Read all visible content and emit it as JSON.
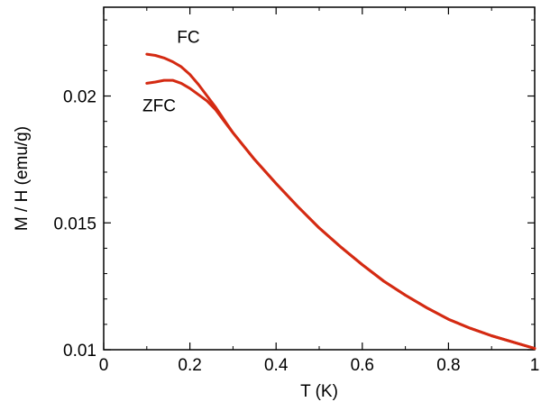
{
  "chart_data": {
    "type": "line",
    "title": "",
    "xlabel": "T (K)",
    "ylabel": "M / H (emu/g)",
    "xlim": [
      0,
      1
    ],
    "ylim": [
      0.01,
      0.0235
    ],
    "x_ticks": [
      0,
      0.2,
      0.4,
      0.6,
      0.8,
      1
    ],
    "x_tick_labels": [
      "0",
      "0.2",
      "0.4",
      "0.6",
      "0.8",
      "1"
    ],
    "y_ticks": [
      0.01,
      0.015,
      0.02
    ],
    "y_tick_labels": [
      "0.01",
      "0.015",
      "0.02"
    ],
    "grid": false,
    "legend": "none",
    "line_color": "#d42a12",
    "annotations": [
      {
        "text": "FC",
        "x": 0.17,
        "y": 0.0221
      },
      {
        "text": "ZFC",
        "x": 0.09,
        "y": 0.0194
      }
    ],
    "series": [
      {
        "name": "FC",
        "x": [
          0.1,
          0.12,
          0.14,
          0.16,
          0.18,
          0.2,
          0.22,
          0.24,
          0.26,
          0.28,
          0.3,
          0.35,
          0.4,
          0.45,
          0.5,
          0.55,
          0.6,
          0.65,
          0.7,
          0.75,
          0.8,
          0.85,
          0.9,
          0.95,
          1.0
        ],
        "y": [
          0.02165,
          0.0216,
          0.0215,
          0.02135,
          0.02115,
          0.02085,
          0.02045,
          0.02,
          0.01955,
          0.01905,
          0.01855,
          0.0175,
          0.01655,
          0.01565,
          0.0148,
          0.01405,
          0.01335,
          0.0127,
          0.01215,
          0.01165,
          0.0112,
          0.01085,
          0.01055,
          0.0103,
          0.01005
        ]
      },
      {
        "name": "ZFC",
        "x": [
          0.1,
          0.12,
          0.14,
          0.16,
          0.18,
          0.2,
          0.22,
          0.24,
          0.26,
          0.28,
          0.3,
          0.35,
          0.4,
          0.45,
          0.5,
          0.55,
          0.6,
          0.65,
          0.7,
          0.75,
          0.8,
          0.85,
          0.9,
          0.95,
          1.0
        ],
        "y": [
          0.0205,
          0.02055,
          0.02062,
          0.02062,
          0.0205,
          0.0203,
          0.02005,
          0.0198,
          0.01945,
          0.019,
          0.01855,
          0.0175,
          0.01655,
          0.01565,
          0.0148,
          0.01405,
          0.01335,
          0.0127,
          0.01215,
          0.01165,
          0.0112,
          0.01085,
          0.01055,
          0.0103,
          0.01005
        ]
      }
    ]
  }
}
